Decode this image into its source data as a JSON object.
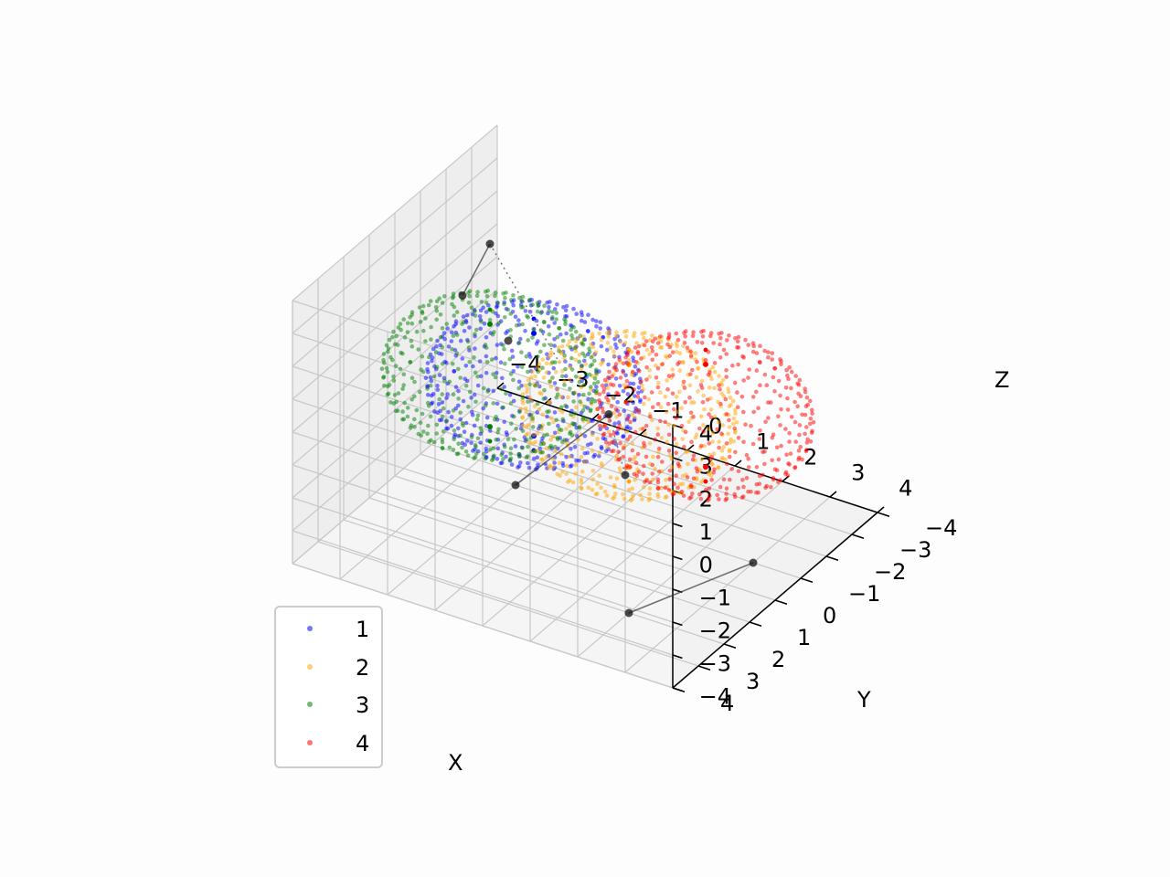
{
  "chart_data": {
    "type": "scatter",
    "projection": "3d",
    "title": "",
    "xlabel": "X",
    "ylabel": "Y",
    "zlabel": "Z",
    "xlim": [
      -4,
      4
    ],
    "ylim": [
      -4,
      4
    ],
    "zlim": [
      -4,
      4
    ],
    "grid": true,
    "legend_position": "lower-left",
    "ticks": {
      "x": [
        "−4",
        "−3",
        "−2",
        "−1",
        "0",
        "1",
        "2",
        "3",
        "4"
      ],
      "y": [
        "−4",
        "−3",
        "−2",
        "−1",
        "0",
        "1",
        "2",
        "3",
        "4"
      ],
      "z": [
        "−4",
        "−3",
        "−2",
        "−1",
        "0",
        "1",
        "2",
        "3",
        "4"
      ]
    },
    "series": [
      {
        "name": "1",
        "color": "#0000ff",
        "center": [
          0,
          2,
          2
        ],
        "radius": 2,
        "pole_marker_color": "#0000ff"
      },
      {
        "name": "2",
        "color": "#ffa500",
        "center": [
          2,
          2,
          2
        ],
        "radius": 2,
        "pole_marker_color": "#ffa500"
      },
      {
        "name": "3",
        "color": "#008000",
        "center": [
          -2,
          0,
          0
        ],
        "radius": 2,
        "pole_marker_color": "#008000"
      },
      {
        "name": "4",
        "color": "#ff0000",
        "center": [
          2,
          -1,
          0
        ],
        "radius": 2,
        "pole_marker_color": "#ff0000"
      }
    ],
    "black_points": [
      [
        -2,
        0,
        4
      ],
      [
        -1.5,
        2,
        4
      ],
      [
        0,
        3,
        4
      ],
      [
        3,
        4,
        2
      ],
      [
        0.5,
        0,
        0
      ],
      [
        -2,
        -1,
        -4
      ],
      [
        3,
        -1,
        -4
      ],
      [
        2,
        2,
        -4
      ]
    ],
    "black_segments": [
      [
        [
          -2,
          0,
          4
        ],
        [
          -1.5,
          2,
          4
        ]
      ],
      [
        [
          -2,
          -1,
          -4
        ],
        [
          0.5,
          0,
          0
        ]
      ],
      [
        [
          3,
          -1,
          -4
        ],
        [
          2,
          2,
          -4
        ]
      ]
    ],
    "dotted_segments": [
      [
        [
          -2,
          0,
          4
        ],
        [
          0,
          1,
          2
        ]
      ],
      [
        [
          0.5,
          0,
          0
        ],
        [
          3,
          4,
          2
        ]
      ]
    ]
  },
  "legend": {
    "items": [
      {
        "label": "1",
        "color": "#0000ff"
      },
      {
        "label": "2",
        "color": "#ffa500"
      },
      {
        "label": "3",
        "color": "#008000"
      },
      {
        "label": "4",
        "color": "#ff0000"
      }
    ]
  }
}
